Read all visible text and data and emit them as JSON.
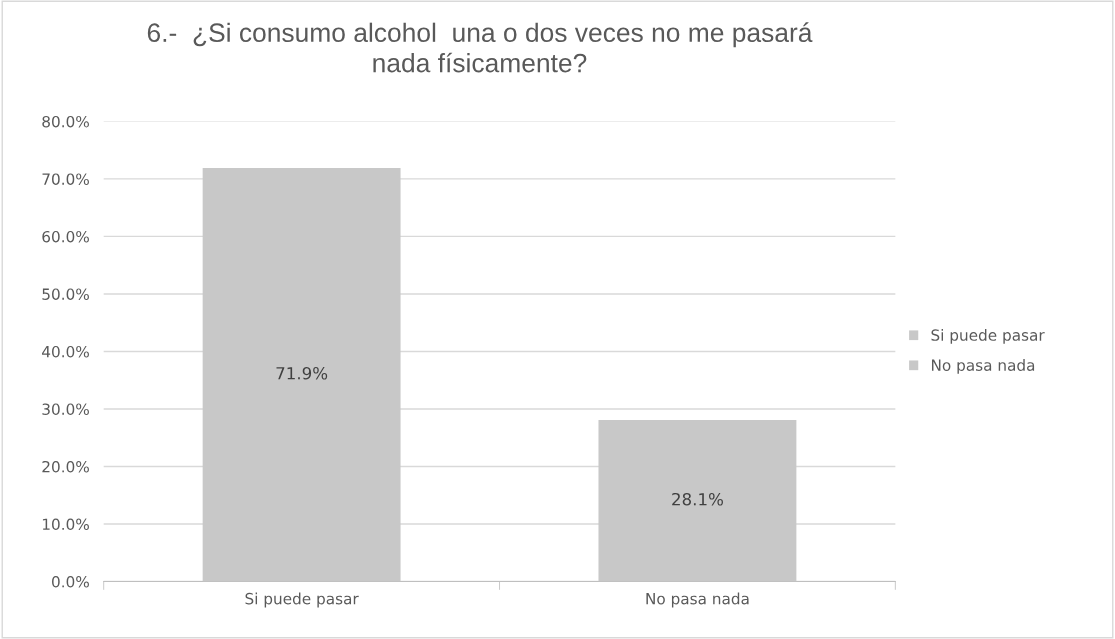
{
  "chart_data": {
    "type": "bar",
    "title": "6.-  ¿Si consumo alcohol  una o dos veces no me pasará\nnada físicamente?",
    "categories": [
      "Si puede pasar",
      "No pasa nada"
    ],
    "stacked": true,
    "series": [
      {
        "name": "Si puede pasar",
        "color": "#c8c8c8",
        "values": [
          71.9,
          null
        ],
        "value_labels": [
          "71.9%",
          null
        ]
      },
      {
        "name": "No pasa nada",
        "color": "#c8c8c8",
        "values": [
          null,
          28.1
        ],
        "value_labels": [
          null,
          "28.1%"
        ]
      }
    ],
    "ylim": [
      0,
      80
    ],
    "yticks": [
      {
        "value": 0,
        "label": "0.0%"
      },
      {
        "value": 10,
        "label": "10.0%"
      },
      {
        "value": 20,
        "label": "20.0%"
      },
      {
        "value": 30,
        "label": "30.0%"
      },
      {
        "value": 40,
        "label": "40.0%"
      },
      {
        "value": 50,
        "label": "50.0%"
      },
      {
        "value": 60,
        "label": "60.0%"
      },
      {
        "value": 70,
        "label": "70.0%"
      },
      {
        "value": 80,
        "label": "80.0%"
      }
    ],
    "grid": "y",
    "legend": "right"
  }
}
